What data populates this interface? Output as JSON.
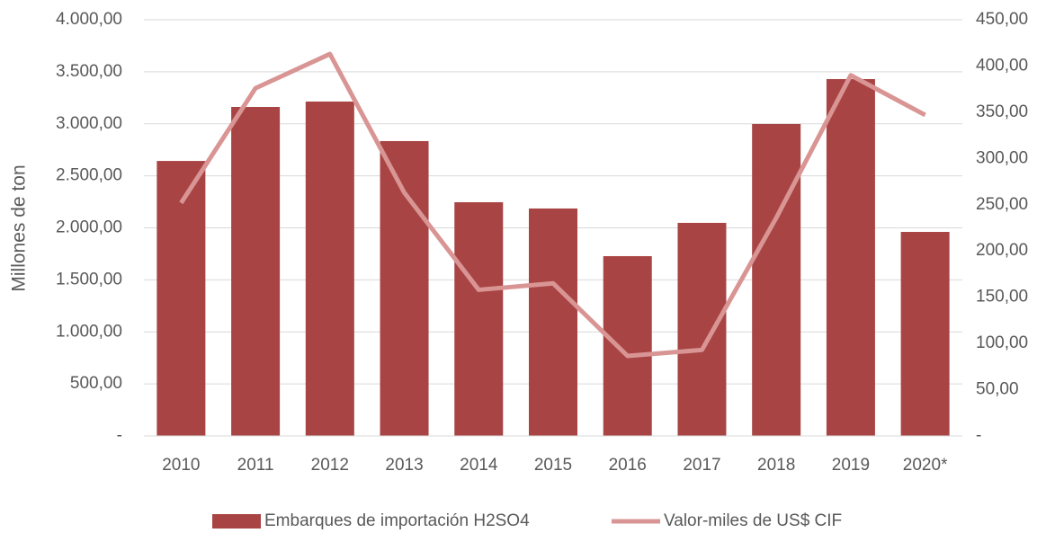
{
  "chart_data": {
    "type": "bar_line",
    "y_label": "Millones de ton",
    "categories": [
      "2010",
      "2011",
      "2012",
      "2013",
      "2014",
      "2015",
      "2016",
      "2017",
      "2018",
      "2019",
      "2020*"
    ],
    "series": [
      {
        "name": "Embarques de importación H2SO4",
        "type": "bar",
        "color": "#a84444",
        "axis": "y",
        "values": [
          2643,
          3162,
          3214,
          2834,
          2246,
          2186,
          1728,
          2048,
          2998,
          3430,
          1961
        ]
      },
      {
        "name": "Valor-miles de US$ CIF",
        "type": "line",
        "color": "#d99594",
        "axis": "y2",
        "values": [
          252,
          376,
          413,
          263,
          158,
          165,
          86.5,
          93,
          236,
          390,
          347
        ]
      }
    ],
    "ylim": [
      0,
      4000
    ],
    "yticks": [
      {
        "value": 0,
        "label": "-"
      },
      {
        "value": 500,
        "label": "500,00"
      },
      {
        "value": 1000,
        "label": "1.000,00"
      },
      {
        "value": 1500,
        "label": "1.500,00"
      },
      {
        "value": 2000,
        "label": "2.000,00"
      },
      {
        "value": 2500,
        "label": "2.500,00"
      },
      {
        "value": 3000,
        "label": "3.000,00"
      },
      {
        "value": 3500,
        "label": "3.500,00"
      },
      {
        "value": 4000,
        "label": "4.000,00"
      }
    ],
    "y2lim": [
      0,
      450
    ],
    "y2ticks": [
      {
        "value": 0,
        "label": "-"
      },
      {
        "value": 50,
        "label": "50,00"
      },
      {
        "value": 100,
        "label": "100,00"
      },
      {
        "value": 150,
        "label": "150,00"
      },
      {
        "value": 200,
        "label": "200,00"
      },
      {
        "value": 250,
        "label": "250,00"
      },
      {
        "value": 300,
        "label": "300,00"
      },
      {
        "value": 350,
        "label": "350,00"
      },
      {
        "value": 400,
        "label": "400,00"
      },
      {
        "value": 450,
        "label": "450,00"
      }
    ],
    "grid": true,
    "legend": "bottom"
  }
}
